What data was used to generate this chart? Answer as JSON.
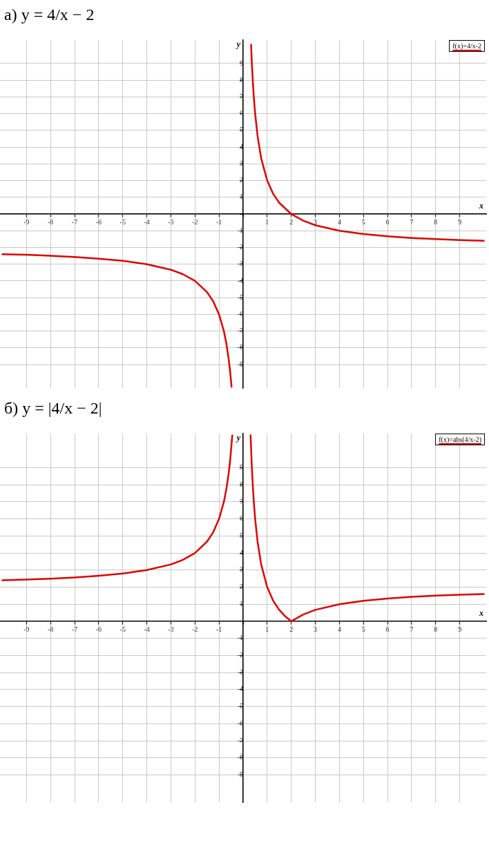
{
  "chart_data": [
    {
      "type": "line",
      "title": "а) y = 4/x − 2",
      "xlabel": "x",
      "ylabel": "y",
      "xlim": [
        -10.1,
        10.1
      ],
      "ylim": [
        -10.4,
        10.4
      ],
      "xticks": [
        -9,
        -8,
        -7,
        -6,
        -5,
        -4,
        -3,
        -2,
        -1,
        {
          "value": 0,
          "label": null
        },
        1,
        2,
        3,
        4,
        5,
        6,
        7,
        8,
        9
      ],
      "yticks": [
        -9,
        -8,
        -7,
        -6,
        -5,
        -4,
        -3,
        -2,
        -1,
        {
          "value": 0,
          "label": null
        },
        1,
        2,
        3,
        4,
        5,
        6,
        7,
        8,
        9
      ],
      "grid": true,
      "legend": "top right",
      "marker": "none",
      "line_style": "solid",
      "series": [
        {
          "name": "f(x)=4/x-2",
          "color": "#e00000",
          "x": [
            -10,
            -9,
            -8,
            -7,
            -6,
            -5,
            -4,
            -3,
            -2.5,
            -2,
            -1.5,
            -1.25,
            -1,
            -0.8,
            -0.7,
            -0.6,
            -0.54,
            -0.48,
            0,
            0.33,
            0.36,
            0.4,
            0.45,
            0.5,
            0.6,
            0.75,
            1,
            1.25,
            1.5,
            2,
            2.5,
            3,
            4,
            5,
            6,
            7,
            8,
            9,
            10
          ],
          "values": [
            -2.4,
            -2.44,
            -2.5,
            -2.57,
            -2.67,
            -2.8,
            -3,
            -3.33,
            -3.6,
            -4,
            -4.67,
            -5.2,
            -6,
            -7,
            -7.71,
            -8.67,
            -9.41,
            -10.33,
            null,
            10.12,
            9.11,
            8,
            6.89,
            6,
            4.67,
            3.33,
            2,
            1.2,
            0.67,
            0,
            -0.4,
            -0.67,
            -1,
            -1.2,
            -1.33,
            -1.43,
            -1.5,
            -1.56,
            -1.6
          ]
        }
      ]
    },
    {
      "type": "line",
      "title": "б) y = |4/x − 2|",
      "xlabel": "x",
      "ylabel": "y",
      "xlim": [
        -10.1,
        10.1
      ],
      "ylim": [
        -10.6,
        11
      ],
      "xticks": [
        -9,
        -8,
        -7,
        -6,
        -5,
        -4,
        -3,
        -2,
        -1,
        {
          "value": 0,
          "label": null
        },
        1,
        2,
        3,
        4,
        5,
        6,
        7,
        8,
        9
      ],
      "yticks": [
        -9,
        -8,
        -7,
        -6,
        -5,
        -4,
        -3,
        -2,
        -1,
        {
          "value": 0,
          "label": null
        },
        1,
        2,
        3,
        4,
        5,
        6,
        7,
        8,
        9
      ],
      "grid": true,
      "legend": "top right",
      "marker": "none",
      "line_style": "solid",
      "series": [
        {
          "name": "f(x)=abs(4/x-2)",
          "color": "#e00000",
          "x": [
            -10,
            -9,
            -8,
            -7,
            -6,
            -5,
            -4,
            -3,
            -2.5,
            -2,
            -1.5,
            -1.25,
            -1,
            -0.8,
            -0.7,
            -0.6,
            -0.54,
            -0.45,
            0,
            0.31,
            0.36,
            0.4,
            0.45,
            0.5,
            0.6,
            0.75,
            1,
            1.25,
            1.5,
            1.75,
            2,
            2.5,
            3,
            4,
            5,
            6,
            7,
            8,
            9,
            10
          ],
          "values": [
            2.4,
            2.44,
            2.5,
            2.57,
            2.67,
            2.8,
            3,
            3.33,
            3.6,
            4,
            4.67,
            5.2,
            6,
            7,
            7.71,
            8.67,
            9.41,
            10.89,
            null,
            10.9,
            9.11,
            8,
            6.89,
            6,
            4.67,
            3.33,
            2,
            1.2,
            0.67,
            0.29,
            0,
            0.4,
            0.67,
            1,
            1.2,
            1.33,
            1.43,
            1.5,
            1.56,
            1.6
          ]
        }
      ]
    }
  ]
}
